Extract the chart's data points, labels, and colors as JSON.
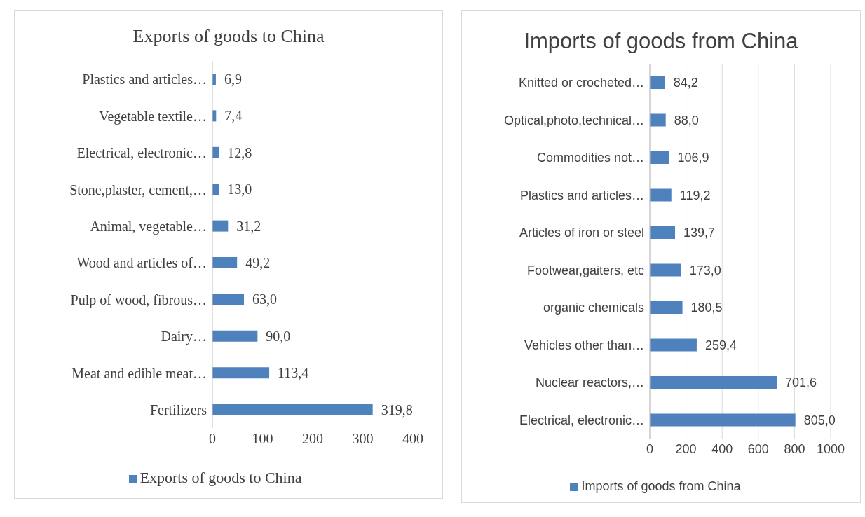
{
  "chart_data": [
    {
      "type": "bar",
      "orientation": "horizontal",
      "title": "Exports of goods to China",
      "categories": [
        "Plastics and articles…",
        "Vegetable textile…",
        "Electrical, electronic…",
        "Stone,plaster, cement,…",
        "Animal, vegetable…",
        "Wood and articles of…",
        "Pulp of wood, fibrous…",
        "Dairy…",
        "Meat and edible meat…",
        "Fertilizers"
      ],
      "series": [
        {
          "name": "Exports of goods to China",
          "color": "#4f81bd",
          "values": [
            6.9,
            7.4,
            12.8,
            13.0,
            31.2,
            49.2,
            63.0,
            90.0,
            113.4,
            319.8
          ],
          "value_labels": [
            "6,9",
            "7,4",
            "12,8",
            "13,0",
            "31,2",
            "49,2",
            "63,0",
            "90,0",
            "113,4",
            "319,8"
          ]
        }
      ],
      "xlim": [
        0,
        400
      ],
      "xticks": [
        0,
        100,
        200,
        300,
        400
      ],
      "grid": false,
      "legend": "bottom"
    },
    {
      "type": "bar",
      "orientation": "horizontal",
      "title": "Imports of goods from China",
      "categories": [
        "Knitted or crocheted…",
        "Optical,photo,technical…",
        "Commodities not…",
        "Plastics and articles…",
        "Articles of iron or steel",
        "Footwear,gaiters, etc",
        "organic chemicals",
        "Vehicles other than…",
        "Nuclear reactors,…",
        "Electrical, electronic…"
      ],
      "series": [
        {
          "name": "Imports of goods from China",
          "color": "#4f81bd",
          "values": [
            84.2,
            88.0,
            106.9,
            119.2,
            139.7,
            173.0,
            180.5,
            259.4,
            701.6,
            805.0
          ],
          "value_labels": [
            "84,2",
            "88,0",
            "106,9",
            "119,2",
            "139,7",
            "173,0",
            "180,5",
            "259,4",
            "701,6",
            "805,0"
          ]
        }
      ],
      "xlim": [
        0,
        1000
      ],
      "xticks": [
        0,
        200,
        400,
        600,
        800,
        1000
      ],
      "grid": "x",
      "legend": "bottom"
    }
  ]
}
